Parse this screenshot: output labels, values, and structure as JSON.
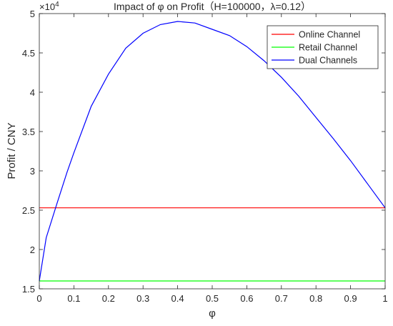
{
  "chart_data": {
    "type": "line",
    "title": "Impact of φ on Profit（H=100000，λ=0.12）",
    "xlabel": "φ",
    "ylabel": "Profit / CNY",
    "y_exponent_label": "×10",
    "y_exponent_power": "4",
    "y_scale_factor": 10000,
    "xlim": [
      0,
      1
    ],
    "ylim": [
      15000,
      50000
    ],
    "x_ticks": [
      0,
      0.1,
      0.2,
      0.3,
      0.4,
      0.5,
      0.6,
      0.7,
      0.8,
      0.9,
      1
    ],
    "x_tick_labels": [
      "0",
      "0.1",
      "0.2",
      "0.3",
      "0.4",
      "0.5",
      "0.6",
      "0.7",
      "0.8",
      "0.9",
      "1"
    ],
    "y_ticks": [
      15000,
      20000,
      25000,
      30000,
      35000,
      40000,
      45000,
      50000
    ],
    "y_tick_labels": [
      "1.5",
      "2",
      "2.5",
      "3",
      "3.5",
      "4",
      "4.5",
      "5"
    ],
    "grid": false,
    "legend_position": "top-right",
    "series": [
      {
        "name": "Online Channel",
        "color": "#ff0000",
        "x": [
          0,
          1
        ],
        "y": [
          25300,
          25300
        ]
      },
      {
        "name": "Retail Channel",
        "color": "#00ff00",
        "x": [
          0,
          1
        ],
        "y": [
          16000,
          16000
        ]
      },
      {
        "name": "Dual Channels",
        "color": "#0000ff",
        "x": [
          0,
          0.02,
          0.05,
          0.08,
          0.1,
          0.15,
          0.2,
          0.25,
          0.3,
          0.35,
          0.4,
          0.45,
          0.5,
          0.55,
          0.6,
          0.65,
          0.7,
          0.75,
          0.8,
          0.85,
          0.9,
          0.95,
          1
        ],
        "y": [
          16000,
          21500,
          25700,
          29800,
          32300,
          38200,
          42300,
          45600,
          47500,
          48600,
          49000,
          48800,
          48000,
          47200,
          45800,
          44000,
          41900,
          39500,
          36800,
          34100,
          31300,
          28300,
          25300
        ]
      }
    ]
  }
}
